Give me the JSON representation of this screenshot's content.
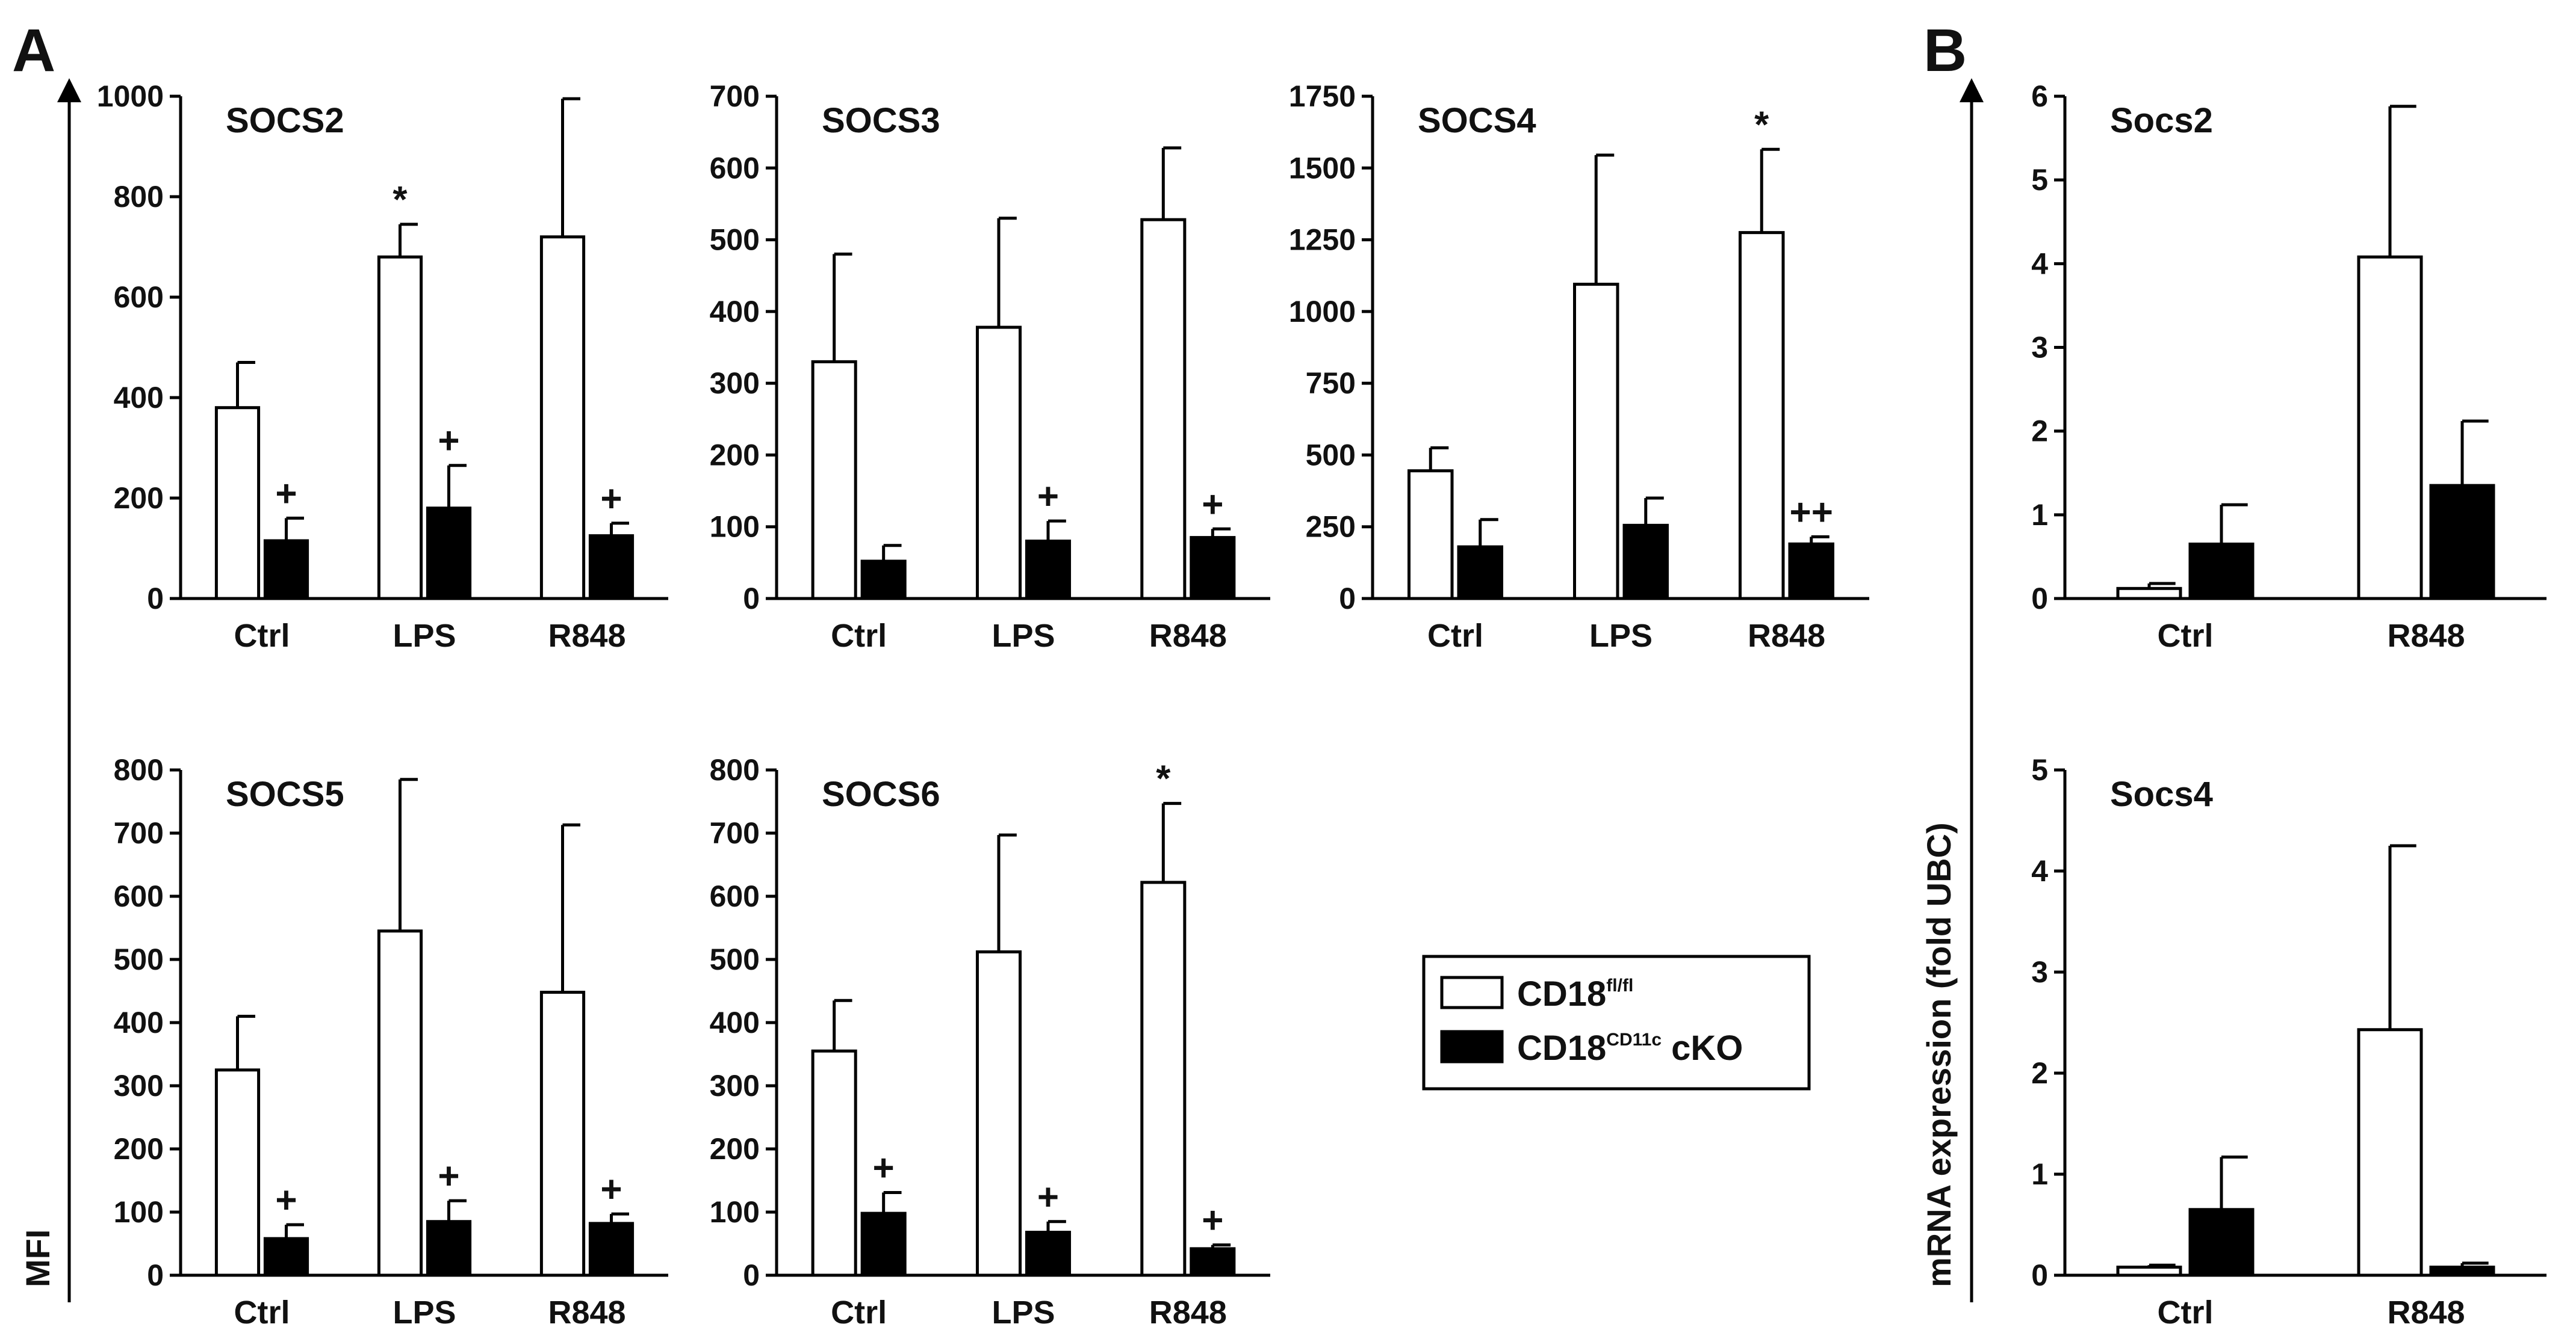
{
  "panel_letters": {
    "a": "A",
    "b": "B"
  },
  "y_titles": {
    "a": "MFI",
    "b": "mRNA expression (fold UBC)"
  },
  "legend": {
    "wt_base": "CD18",
    "wt_sup": "fl/fl",
    "ko_base": "CD18",
    "ko_sup": "CD11c",
    "ko_suffix": " cKO"
  },
  "colors": {
    "wt_fill": "#ffffff",
    "ko_fill": "#000000",
    "stroke": "#000000"
  },
  "chart_data": [
    {
      "id": "socs2",
      "type": "bar",
      "title": "SOCS2",
      "categories": [
        "Ctrl",
        "LPS",
        "R848"
      ],
      "series": [
        {
          "name": "CD18fl/fl",
          "values": [
            380,
            680,
            720
          ],
          "errors": [
            90,
            65,
            275
          ],
          "annotations": [
            "",
            "*",
            ""
          ]
        },
        {
          "name": "CD18CD11c cKO",
          "values": [
            115,
            180,
            125
          ],
          "errors": [
            45,
            85,
            25
          ],
          "annotations": [
            "+",
            "+",
            "+"
          ]
        }
      ],
      "ylim": [
        0,
        1000
      ],
      "yticks": [
        0,
        200,
        400,
        600,
        800,
        1000
      ],
      "ylabel": "MFI"
    },
    {
      "id": "socs3",
      "type": "bar",
      "title": "SOCS3",
      "categories": [
        "Ctrl",
        "LPS",
        "R848"
      ],
      "series": [
        {
          "name": "CD18fl/fl",
          "values": [
            330,
            378,
            528
          ],
          "errors": [
            150,
            152,
            100
          ],
          "annotations": [
            "",
            "",
            ""
          ]
        },
        {
          "name": "CD18CD11c cKO",
          "values": [
            52,
            80,
            85
          ],
          "errors": [
            22,
            28,
            12
          ],
          "annotations": [
            "",
            "+",
            "+"
          ]
        }
      ],
      "ylim": [
        0,
        700
      ],
      "yticks": [
        0,
        100,
        200,
        300,
        400,
        500,
        600,
        700
      ],
      "ylabel": "MFI"
    },
    {
      "id": "socs4",
      "type": "bar",
      "title": "SOCS4",
      "categories": [
        "Ctrl",
        "LPS",
        "R848"
      ],
      "series": [
        {
          "name": "CD18fl/fl",
          "values": [
            445,
            1095,
            1275
          ],
          "errors": [
            80,
            450,
            290
          ],
          "annotations": [
            "",
            "",
            "*"
          ]
        },
        {
          "name": "CD18CD11c cKO",
          "values": [
            180,
            255,
            190
          ],
          "errors": [
            95,
            95,
            25
          ],
          "annotations": [
            "",
            "",
            "++"
          ]
        }
      ],
      "ylim": [
        0,
        1750
      ],
      "yticks": [
        0,
        250,
        500,
        750,
        1000,
        1250,
        1500,
        1750
      ],
      "ylabel": "MFI"
    },
    {
      "id": "socs5",
      "type": "bar",
      "title": "SOCS5",
      "categories": [
        "Ctrl",
        "LPS",
        "R848"
      ],
      "series": [
        {
          "name": "CD18fl/fl",
          "values": [
            325,
            545,
            448
          ],
          "errors": [
            85,
            240,
            265
          ],
          "annotations": [
            "",
            "",
            ""
          ]
        },
        {
          "name": "CD18CD11c cKO",
          "values": [
            58,
            85,
            82
          ],
          "errors": [
            22,
            33,
            15
          ],
          "annotations": [
            "+",
            "+",
            "+"
          ]
        }
      ],
      "ylim": [
        0,
        800
      ],
      "yticks": [
        0,
        100,
        200,
        300,
        400,
        500,
        600,
        700,
        800
      ],
      "ylabel": "MFI"
    },
    {
      "id": "socs6",
      "type": "bar",
      "title": "SOCS6",
      "categories": [
        "Ctrl",
        "LPS",
        "R848"
      ],
      "series": [
        {
          "name": "CD18fl/fl",
          "values": [
            355,
            512,
            622
          ],
          "errors": [
            80,
            185,
            125
          ],
          "annotations": [
            "",
            "",
            "*"
          ]
        },
        {
          "name": "CD18CD11c cKO",
          "values": [
            98,
            68,
            42
          ],
          "errors": [
            33,
            17,
            6
          ],
          "annotations": [
            "+",
            "+",
            "+"
          ]
        }
      ],
      "ylim": [
        0,
        800
      ],
      "yticks": [
        0,
        100,
        200,
        300,
        400,
        500,
        600,
        700,
        800
      ],
      "ylabel": "MFI"
    },
    {
      "id": "mrna_socs2",
      "type": "bar",
      "title": "Socs2",
      "categories": [
        "Ctrl",
        "R848"
      ],
      "series": [
        {
          "name": "CD18fl/fl",
          "values": [
            0.12,
            4.08
          ],
          "errors": [
            0.06,
            1.8
          ],
          "annotations": [
            "",
            ""
          ]
        },
        {
          "name": "CD18CD11c cKO",
          "values": [
            0.65,
            1.35
          ],
          "errors": [
            0.47,
            0.77
          ],
          "annotations": [
            "",
            ""
          ]
        }
      ],
      "ylim": [
        0,
        6
      ],
      "yticks": [
        0,
        1,
        2,
        3,
        4,
        5,
        6
      ],
      "ylabel": "mRNA expression (fold UBC)"
    },
    {
      "id": "mrna_socs4",
      "type": "bar",
      "title": "Socs4",
      "categories": [
        "Ctrl",
        "R848"
      ],
      "series": [
        {
          "name": "CD18fl/fl",
          "values": [
            0.08,
            2.43
          ],
          "errors": [
            0.02,
            1.82
          ],
          "annotations": [
            "",
            ""
          ]
        },
        {
          "name": "CD18CD11c cKO",
          "values": [
            0.65,
            0.08
          ],
          "errors": [
            0.52,
            0.04
          ],
          "annotations": [
            "",
            ""
          ]
        }
      ],
      "ylim": [
        0,
        5
      ],
      "yticks": [
        0,
        1,
        2,
        3,
        4,
        5
      ],
      "ylabel": "mRNA expression (fold UBC)"
    }
  ]
}
